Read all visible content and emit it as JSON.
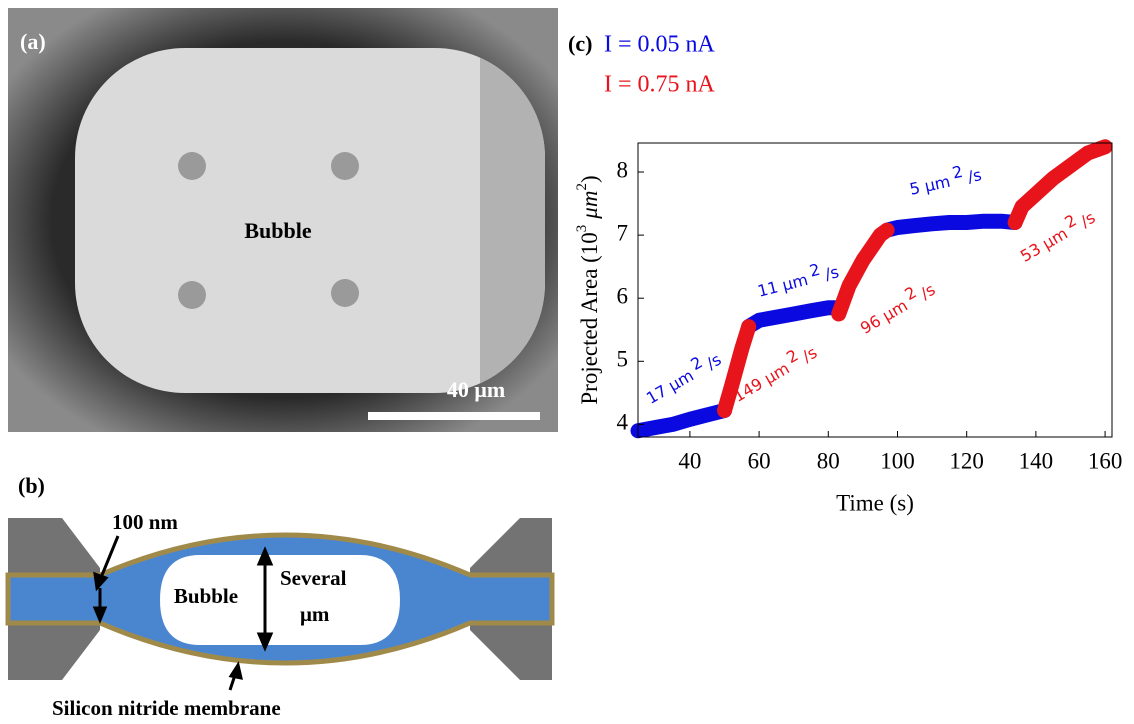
{
  "panel_a": {
    "label": "(a)",
    "bubble_label": "Bubble",
    "scale_bar": "40 μm"
  },
  "panel_b": {
    "label": "(b)",
    "thickness": "100 nm",
    "bubble_label": "Bubble",
    "height_line1": "Several",
    "height_line2": "μm",
    "membrane": "Silicon nitride membrane"
  },
  "chart_data": {
    "type": "line",
    "panel_label": "(c)",
    "xlabel": "Time (s)",
    "ylabel": {
      "text": "Projected Area (10",
      "exp": "3",
      "unit": "μm",
      "unit_exp": "2",
      "close": ")"
    },
    "x": [
      25,
      30,
      35,
      40,
      45,
      50,
      52,
      55,
      57,
      60,
      65,
      70,
      75,
      80,
      83,
      86,
      90,
      95,
      97,
      100,
      105,
      110,
      115,
      120,
      125,
      130,
      134,
      136,
      140,
      145,
      150,
      155,
      160
    ],
    "series": [
      {
        "name": "I = 0.05 nA",
        "color": "#0a0ae0",
        "values": [
          3.9,
          3.95,
          4.0,
          4.08,
          4.15,
          4.22,
          null,
          null,
          5.55,
          5.65,
          5.7,
          5.75,
          5.8,
          5.85,
          5.85,
          null,
          null,
          null,
          7.08,
          7.12,
          7.15,
          7.18,
          7.2,
          7.2,
          7.22,
          7.22,
          7.2,
          null,
          null,
          null,
          null,
          null,
          null
        ]
      },
      {
        "name": "I = 0.75 nA",
        "color": "#e8141c",
        "values": [
          null,
          null,
          null,
          null,
          null,
          4.22,
          4.6,
          5.2,
          5.55,
          null,
          null,
          null,
          null,
          null,
          5.75,
          6.2,
          6.6,
          7.0,
          7.08,
          null,
          null,
          null,
          null,
          null,
          null,
          null,
          7.2,
          7.45,
          7.65,
          7.9,
          8.1,
          8.3,
          8.4
        ]
      }
    ],
    "xlim": [
      25,
      162
    ],
    "ylim": [
      3.8,
      8.46
    ],
    "xticks": [
      40,
      60,
      80,
      100,
      120,
      140,
      160
    ],
    "yticks": [
      4,
      5,
      6,
      7,
      8
    ],
    "annotations": [
      {
        "text": "17 μm",
        "exp": "2",
        "tail": "/s",
        "color": "#0a0ae0"
      },
      {
        "text": "149 μm",
        "exp": "2",
        "tail": "/s",
        "color": "#e8141c"
      },
      {
        "text": "11 μm",
        "exp": "2",
        "tail": "/s",
        "color": "#0a0ae0"
      },
      {
        "text": "96 μm",
        "exp": "2",
        "tail": "/s",
        "color": "#e8141c"
      },
      {
        "text": "5 μm",
        "exp": "2",
        "tail": "/s",
        "color": "#0a0ae0"
      },
      {
        "text": "53 μm",
        "exp": "2",
        "tail": "/s",
        "color": "#e8141c"
      }
    ]
  }
}
